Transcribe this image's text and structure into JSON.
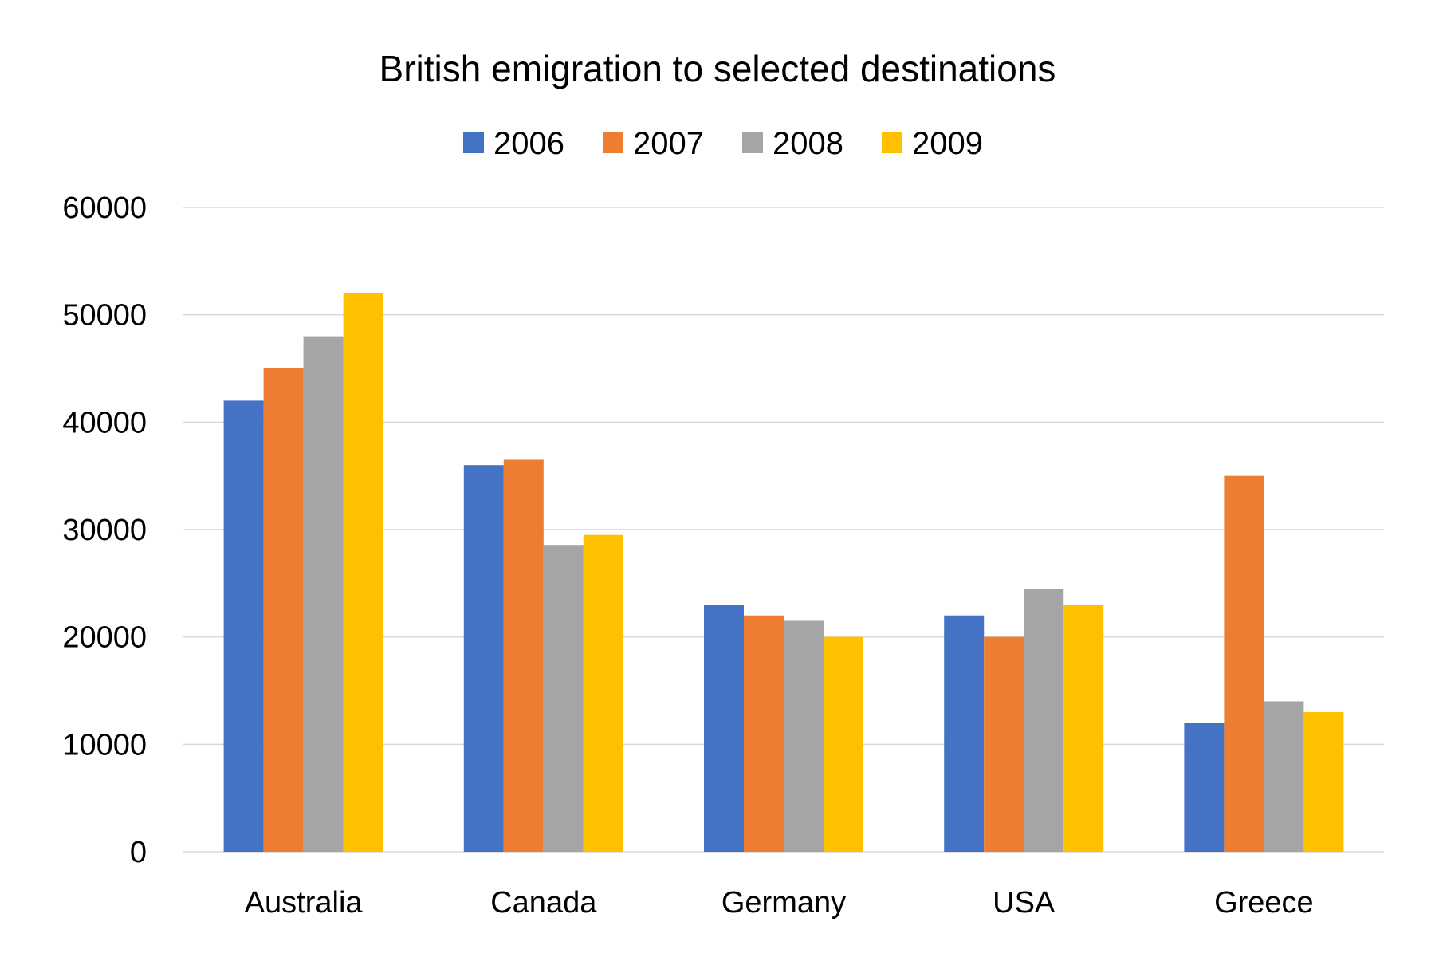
{
  "chart_data": {
    "type": "bar",
    "title": "British emigration to selected destinations",
    "categories": [
      "Australia",
      "Canada",
      "Germany",
      "USA",
      "Greece"
    ],
    "series": [
      {
        "name": "2006",
        "color": "#4472C4",
        "values": [
          42000,
          36000,
          23000,
          22000,
          12000
        ]
      },
      {
        "name": "2007",
        "color": "#ED7D31",
        "values": [
          45000,
          36500,
          22000,
          20000,
          35000
        ]
      },
      {
        "name": "2008",
        "color": "#A5A5A5",
        "values": [
          48000,
          28500,
          21500,
          24500,
          14000
        ]
      },
      {
        "name": "2009",
        "color": "#FFC000",
        "values": [
          52000,
          29500,
          20000,
          23000,
          13000
        ]
      }
    ],
    "yticks": [
      "0",
      "10000",
      "20000",
      "30000",
      "40000",
      "50000",
      "60000"
    ],
    "ylim": [
      0,
      60000
    ],
    "xlabel": "",
    "ylabel": "",
    "grid": true,
    "legend_position": "top"
  }
}
